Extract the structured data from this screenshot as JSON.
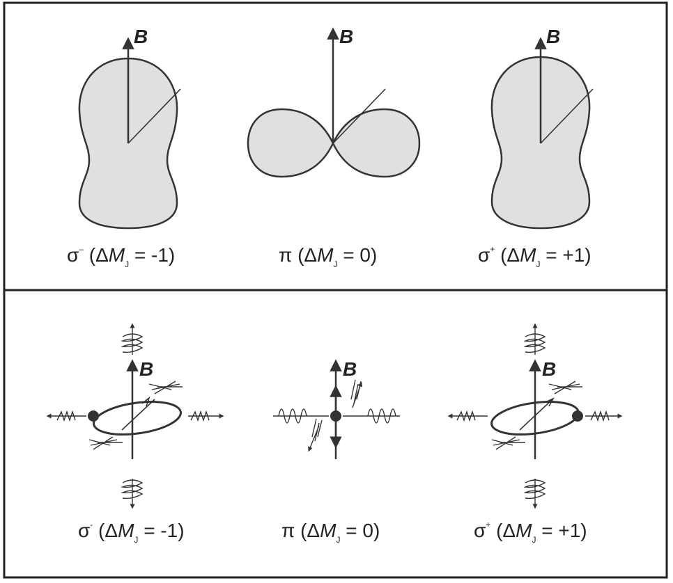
{
  "field_label": "B",
  "panels": {
    "emission_patterns": {
      "captions": {
        "sigma_minus": {
          "symbol": "σ",
          "sign": "–",
          "open": " (Δ",
          "var": "M",
          "sub": "J",
          "eq": " = -1)"
        },
        "pi": {
          "symbol": "π",
          "open": " (Δ",
          "var": "M",
          "sub": "J",
          "eq": " = 0)"
        },
        "sigma_plus": {
          "symbol": "σ",
          "sign": "+",
          "open": " (Δ",
          "var": "M",
          "sub": "J",
          "eq": " = +1)"
        }
      }
    },
    "polarization": {
      "captions": {
        "sigma_minus": {
          "symbol": "σ",
          "sign": "-",
          "open": " (Δ",
          "var": "M",
          "sub": "J",
          "eq": " = -1)"
        },
        "pi": {
          "symbol": "π",
          "open": " (Δ",
          "var": "M",
          "sub": "J",
          "eq": " = 0)"
        },
        "sigma_plus": {
          "symbol": "σ",
          "sign": "+",
          "open": " (Δ",
          "var": "M",
          "sub": "J",
          "eq": " = +1)"
        }
      }
    }
  },
  "colors": {
    "lobe_fill": "#e0e0e0",
    "ink": "#333333",
    "border": "#222222"
  }
}
